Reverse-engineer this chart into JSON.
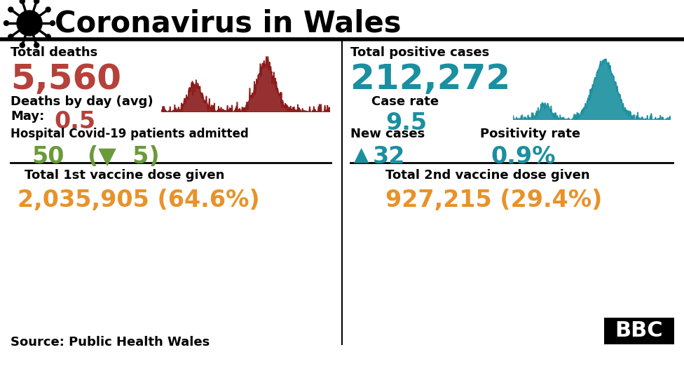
{
  "title": "Coronavirus in Wales",
  "bg_color": "#ffffff",
  "title_color": "#000000",
  "header_line_color": "#000000",
  "left_panel": {
    "total_deaths_label": "Total deaths",
    "total_deaths_value": "5,560",
    "total_deaths_color": "#b5413a",
    "deaths_by_day_label": "Deaths by day (avg)",
    "may_label": "May:",
    "may_value": "0.5",
    "may_value_color": "#b5413a",
    "hospital_label": "Hospital Covid-19 patients admitted",
    "hospital_value": "50",
    "hospital_value_color": "#6a9a3a",
    "hospital_change": "(▼  5)",
    "hospital_change_color": "#6a9a3a",
    "vaccine1_label": "Total 1st vaccine dose given",
    "vaccine1_value": "2,035,905 (64.6%)",
    "vaccine1_color": "#e8922a"
  },
  "right_panel": {
    "total_cases_label": "Total positive cases",
    "total_cases_value": "212,272",
    "total_cases_color": "#1a8fa0",
    "case_rate_label": "Case rate",
    "case_rate_value": "9.5",
    "case_rate_color": "#1a8fa0",
    "new_cases_label": "New cases",
    "new_cases_value": "32",
    "new_cases_color": "#1a8fa0",
    "new_cases_arrow": "▲",
    "positivity_label": "Positivity rate",
    "positivity_value": "0.9%",
    "positivity_color": "#1a8fa0",
    "vaccine2_label": "Total 2nd vaccine dose given",
    "vaccine2_value": "927,215 (29.4%)",
    "vaccine2_color": "#e8922a"
  },
  "source_text": "Source: Public Health Wales",
  "divider_color": "#000000",
  "mid_divider_color": "#000000",
  "deaths_spark_color": "#8b1a1a",
  "cases_spark_color": "#1a8fa0"
}
